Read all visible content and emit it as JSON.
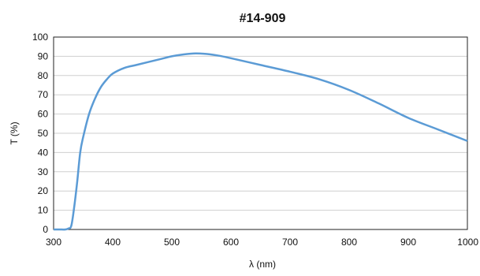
{
  "chart_data": {
    "type": "line",
    "title": "#14-909",
    "xlabel": "λ (nm)",
    "ylabel": "T (%)",
    "xlim": [
      300,
      1000
    ],
    "ylim": [
      0,
      100
    ],
    "x_ticks": [
      "300",
      "400",
      "500",
      "600",
      "700",
      "800",
      "900",
      "1000"
    ],
    "y_ticks": [
      "0",
      "10",
      "20",
      "30",
      "40",
      "50",
      "60",
      "70",
      "80",
      "90",
      "100"
    ],
    "grid": "horizontal",
    "legend": "none",
    "series": [
      {
        "color": "#5b9bd5",
        "x": [
          300,
          310,
          320,
          325,
          330,
          335,
          340,
          345,
          350,
          360,
          370,
          380,
          390,
          400,
          420,
          440,
          460,
          480,
          500,
          520,
          540,
          560,
          580,
          600,
          650,
          700,
          750,
          800,
          850,
          900,
          950,
          1000
        ],
        "y": [
          0,
          0,
          0,
          0.5,
          2,
          12,
          25,
          40,
          48,
          60,
          68,
          74,
          78,
          81,
          84,
          85.5,
          87,
          88.5,
          90,
          91,
          91.5,
          91.2,
          90.3,
          89,
          85.5,
          82,
          78,
          72.5,
          65.5,
          58,
          52,
          46
        ]
      }
    ]
  }
}
